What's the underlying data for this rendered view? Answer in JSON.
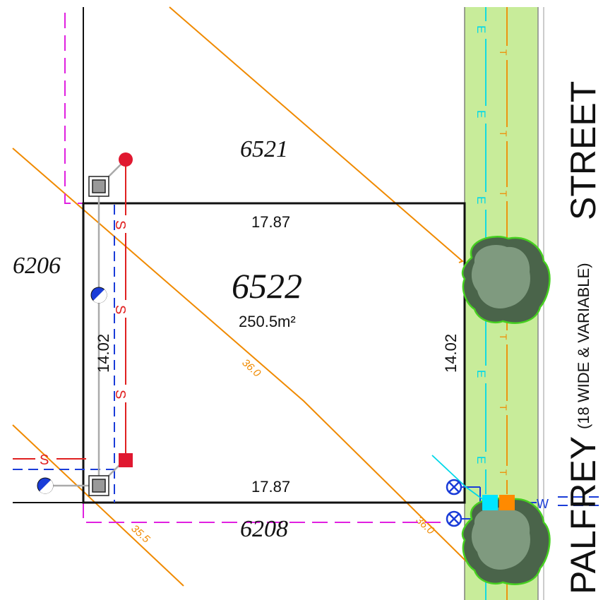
{
  "lots": {
    "main": {
      "number": "6522",
      "area": "250.5m²",
      "dim_top": "17.87",
      "dim_bottom": "17.87",
      "dim_left": "14.02",
      "dim_right": "14.02"
    },
    "north": "6521",
    "west": "6206",
    "south": "6208"
  },
  "contours": {
    "c36_upper": "36.0",
    "c36_lower": "36.0",
    "c355": "35.5"
  },
  "street": {
    "name_part1": "PALFREY",
    "name_part2": "STREET",
    "note": "(18 WIDE & VARIABLE)"
  },
  "service_codes": {
    "sewer": "S",
    "electric": "E",
    "telecom": "T",
    "water": "W"
  },
  "colors": {
    "boundary": "#111111",
    "contour": "#f08a00",
    "easement": "#e020e0",
    "sewer": "#e02020",
    "water": "#1a3cd8",
    "electric": "#00d8e8",
    "telecom": "#f08a00",
    "verge": "#c8ec9a",
    "tree": "#5a7a5a"
  }
}
